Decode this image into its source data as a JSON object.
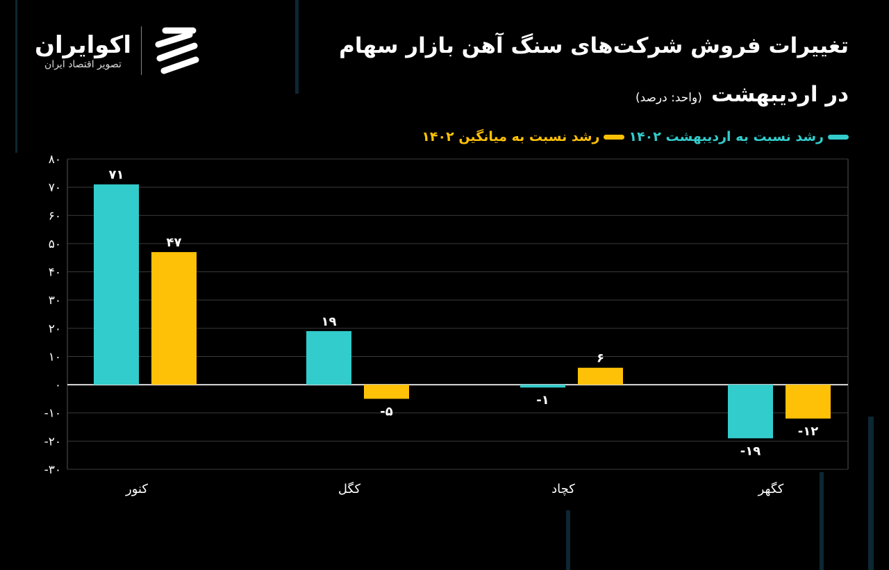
{
  "header": {
    "title": "تغییرات فروش شرکت‌های سنگ آهن بازار سهام",
    "subtitle": "در اردیبهشت",
    "unit": "(واحد: درصد)"
  },
  "logo": {
    "name": "اکوایران",
    "tagline": "تصویر اقتصاد ایران"
  },
  "colors": {
    "series1": "#33cccc",
    "series2": "#ffc107",
    "background": "#000000",
    "grid": "#3a3a3a"
  },
  "chart_data": {
    "type": "bar",
    "title": "تغییرات فروش شرکت‌های سنگ آهن بازار سهام در اردیبهشت",
    "ylabel": "",
    "xlabel": "",
    "ylim": [
      -30,
      80
    ],
    "yticks": [
      80,
      70,
      60,
      50,
      40,
      30,
      20,
      10,
      0,
      -10,
      -20,
      -30
    ],
    "grid": true,
    "legend": "top-right",
    "categories": [
      "کنور",
      "کگل",
      "کچاد",
      "کگهر"
    ],
    "series": [
      {
        "name": "رشد نسبت به اردیبهشت ۱۴۰۲",
        "values": [
          71,
          19,
          -1,
          -19
        ]
      },
      {
        "name": "رشد نسبت به میانگین ۱۴۰۲",
        "values": [
          47,
          -5,
          6,
          -12
        ]
      }
    ]
  }
}
